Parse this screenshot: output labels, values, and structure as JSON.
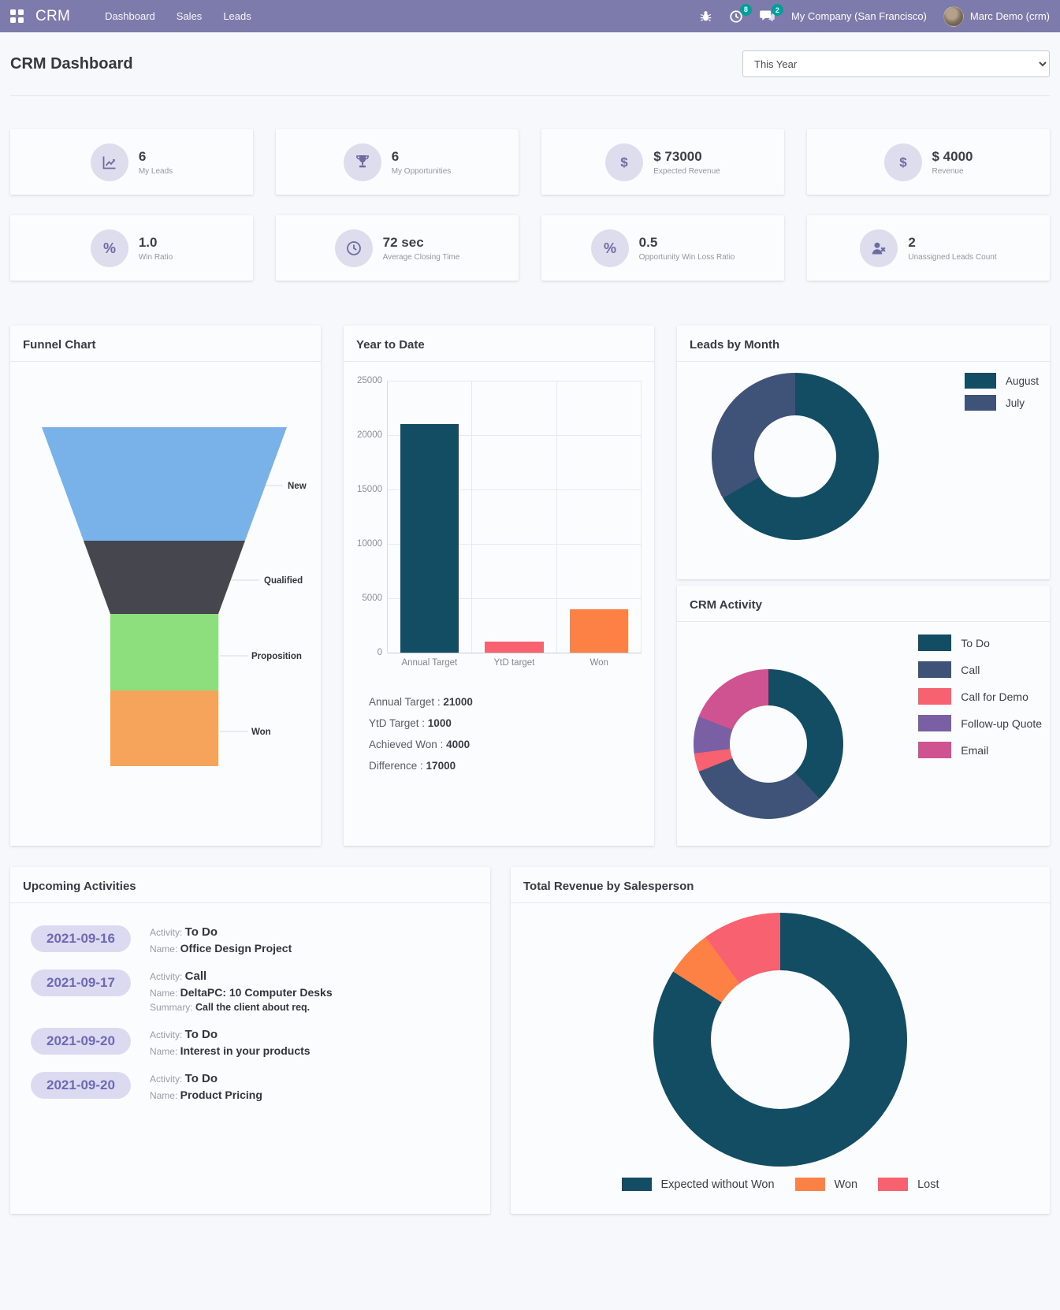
{
  "navbar": {
    "brand": "CRM",
    "menu": [
      "Dashboard",
      "Sales",
      "Leads"
    ],
    "activity_badge": "8",
    "message_badge": "2",
    "company": "My Company (San Francisco)",
    "user": "Marc Demo (crm)"
  },
  "header": {
    "title": "CRM Dashboard",
    "filter_value": "This Year"
  },
  "kpis": [
    {
      "icon": "line-chart-icon",
      "value": "6",
      "label": "My Leads"
    },
    {
      "icon": "trophy-icon",
      "value": "6",
      "label": "My Opportunities"
    },
    {
      "icon": "dollar-icon",
      "value": "$ 73000",
      "label": "Expected Revenue"
    },
    {
      "icon": "dollar-icon",
      "value": "$ 4000",
      "label": "Revenue"
    },
    {
      "icon": "percent-icon",
      "value": "1.0",
      "label": "Win Ratio"
    },
    {
      "icon": "clock-icon",
      "value": "72 sec",
      "label": "Average Closing Time"
    },
    {
      "icon": "percent-icon",
      "value": "0.5",
      "label": "Opportunity Win Loss Ratio"
    },
    {
      "icon": "user-x-icon",
      "value": "2",
      "label": "Unassigned Leads Count"
    }
  ],
  "funnel": {
    "title": "Funnel Chart",
    "chart_data": {
      "type": "funnel",
      "stages": [
        "New",
        "Qualified",
        "Proposition",
        "Won"
      ],
      "colors": [
        "#79b2e9",
        "#46464e",
        "#8ddf7d",
        "#f6a45b"
      ]
    }
  },
  "ytd": {
    "title": "Year to Date",
    "chart_data": {
      "type": "bar",
      "categories": [
        "Annual Target",
        "YtD target",
        "Won"
      ],
      "values": [
        21000,
        1000,
        4000
      ],
      "colors": [
        "#124d63",
        "#f8616f",
        "#fd8144"
      ],
      "ymax": 25000,
      "yticks": [
        "25000",
        "20000",
        "15000",
        "10000",
        "5000",
        "0"
      ]
    },
    "summary": [
      {
        "label": "Annual Target : ",
        "value": "21000"
      },
      {
        "label": "YtD Target : ",
        "value": "1000"
      },
      {
        "label": "Achieved Won : ",
        "value": "4000"
      },
      {
        "label": "Difference : ",
        "value": "17000"
      }
    ]
  },
  "leads_by_month": {
    "title": "Leads by Month",
    "chart_data": {
      "type": "donut",
      "labels": [
        "August",
        "July"
      ],
      "values": [
        4,
        2
      ],
      "colors": [
        "#124d63",
        "#3e5377"
      ],
      "legend_position": "right"
    }
  },
  "crm_activity": {
    "title": "CRM Activity",
    "chart_data": {
      "type": "donut",
      "labels": [
        "To Do",
        "Call",
        "Call for Demo",
        "Follow-up Quote",
        "Email"
      ],
      "values": [
        38,
        31,
        4,
        8,
        19
      ],
      "colors": [
        "#124d63",
        "#3e5377",
        "#f8616f",
        "#7b5fa5",
        "#cf5291"
      ],
      "legend_position": "right"
    }
  },
  "upcoming": {
    "title": "Upcoming Activities",
    "items": [
      {
        "date": "2021-09-16",
        "activity_label": "Activity: ",
        "activity": "To Do",
        "name_label": "Name: ",
        "name": "Office Design Project"
      },
      {
        "date": "2021-09-17",
        "activity_label": "Activity: ",
        "activity": "Call",
        "name_label": "Name: ",
        "name": "DeltaPC: 10 Computer Desks",
        "summary_label": "Summary: ",
        "summary": "Call the client about req."
      },
      {
        "date": "2021-09-20",
        "activity_label": "Activity: ",
        "activity": "To Do",
        "name_label": "Name: ",
        "name": "Interest in your products"
      },
      {
        "date": "2021-09-20",
        "activity_label": "Activity: ",
        "activity": "To Do",
        "name_label": "Name: ",
        "name": "Product Pricing"
      }
    ]
  },
  "revenue_by_salesperson": {
    "title": "Total Revenue by Salesperson",
    "chart_data": {
      "type": "donut",
      "labels": [
        "Expected without Won",
        "Won",
        "Lost"
      ],
      "values": [
        84,
        6,
        10
      ],
      "colors": [
        "#124d63",
        "#fd8144",
        "#f8616f"
      ],
      "legend_position": "bottom"
    }
  }
}
